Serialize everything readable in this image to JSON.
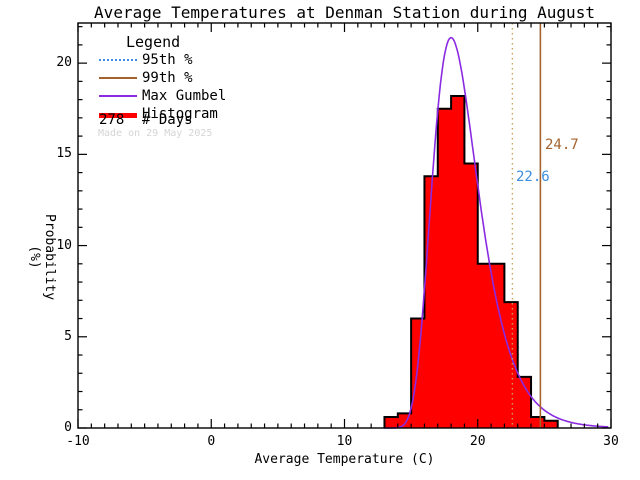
{
  "title": "Average Temperatures at Denman Station during August",
  "axes": {
    "x_label": "Average Temperature (C)",
    "y_label_line1": "Probability",
    "y_label_line2": "(%)"
  },
  "legend": {
    "title": "Legend",
    "items": [
      {
        "name": "95th-percentile",
        "label": "95th %",
        "line_style": "dotted",
        "color": "#3E8EDE",
        "thickness": 2
      },
      {
        "name": "99th-percentile",
        "label": "99th %",
        "line_style": "solid",
        "color": "#A5622D",
        "thickness": 2
      },
      {
        "name": "max-gumbel",
        "label": "Max Gumbel",
        "line_style": "solid",
        "color": "#8A2BE2",
        "thickness": 2
      },
      {
        "name": "histogram",
        "label": "Histogram",
        "line_style": "solid",
        "color": "#FF0000",
        "thickness": 5
      }
    ],
    "days_value": "278",
    "days_label": "# Days",
    "made_on": "Made on 29 May 2025"
  },
  "annotations": {
    "p95_label": "22.6",
    "p99_label": "24.7"
  },
  "colors": {
    "histogram_fill": "#FF0000",
    "histogram_outline": "#000000",
    "gumbel_curve": "#8A2BE2",
    "p95_line": "#C9A35B",
    "p95_text": "#3E8EDE",
    "p99_line": "#A5622D",
    "p99_text": "#A5622D",
    "axis": "#000000",
    "made_on_text": "#D4D4D4"
  },
  "chart_data": {
    "type": "bar",
    "title": "Average Temperatures at Denman Station during August",
    "xlabel": "Average Temperature (C)",
    "ylabel": "Probability (%)",
    "xlim": [
      -10,
      30
    ],
    "ylim": [
      0,
      22.2
    ],
    "x_major_ticks": [
      -10,
      0,
      10,
      20,
      30
    ],
    "x_minor_step": 1,
    "y_major_ticks": [
      0,
      5,
      10,
      15,
      20
    ],
    "y_minor_step": 1,
    "grid": false,
    "legend_position": "upper-left",
    "n_days": 278,
    "histogram": {
      "bin_width_c": 1,
      "bin_left_edges_c": [
        13,
        14,
        15,
        16,
        17,
        18,
        19,
        20,
        21,
        22,
        23,
        24,
        25
      ],
      "heights_percent": [
        0.6,
        0.8,
        6.0,
        13.8,
        17.5,
        18.2,
        14.5,
        9.0,
        9.0,
        6.9,
        2.8,
        0.6,
        0.4
      ],
      "approx_day_counts": [
        2,
        2,
        17,
        38,
        49,
        50,
        40,
        25,
        25,
        19,
        8,
        2,
        1
      ]
    },
    "gumbel_curve": {
      "name": "Max Gumbel",
      "mu_c": 18.0,
      "beta_c": 1.72,
      "peak_percent": 21.4,
      "x_start_c": 13.0,
      "x_end_c": 29.9
    },
    "percentile_95_c": 22.6,
    "percentile_99_c": 24.7
  }
}
